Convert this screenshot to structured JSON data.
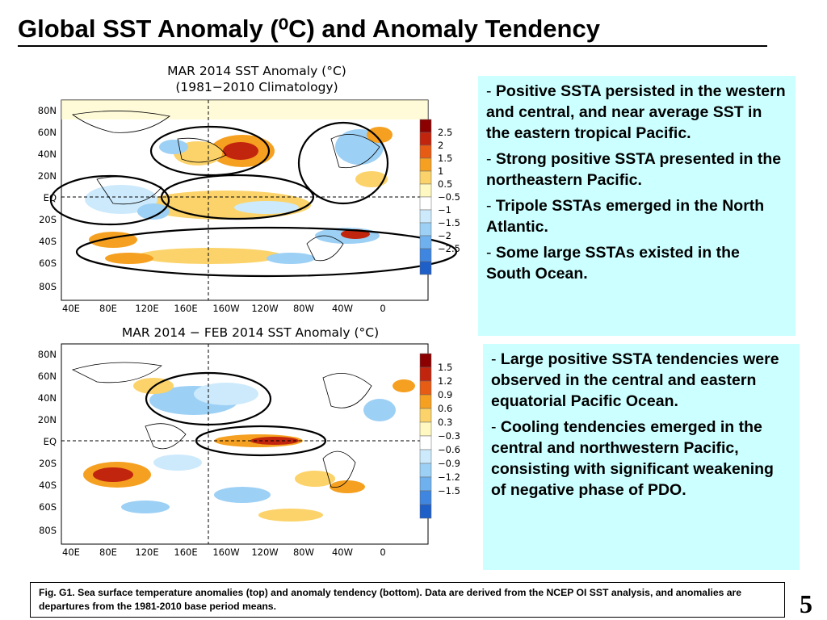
{
  "slide": {
    "title": "Global SST Anomaly (⁰C) and Anomaly Tendency",
    "page_number": "5",
    "caption": "Fig. G1. Sea surface temperature anomalies (top) and anomaly tendency (bottom). Data are derived from the NCEP OI SST analysis, and anomalies are departures from the 1981-2010 base period means."
  },
  "top_map": {
    "title_line1": "MAR 2014 SST Anomaly (°C)",
    "title_line2": "(1981−2010 Climatology)",
    "lat_labels": [
      "80N",
      "60N",
      "40N",
      "20N",
      "EQ",
      "20S",
      "40S",
      "60S",
      "80S"
    ],
    "lon_labels": [
      "40E",
      "80E",
      "120E",
      "160E",
      "160W",
      "120W",
      "80W",
      "40W",
      "0"
    ],
    "colorbar_labels": [
      "2.5",
      "2",
      "1.5",
      "1",
      "0.5",
      "−0.5",
      "−1",
      "−1.5",
      "−2",
      "−2.5"
    ],
    "colorbar_colors": [
      "#8b0000",
      "#c2250e",
      "#e65c14",
      "#f5a020",
      "#fcd36a",
      "#fff8c0",
      "#ffffff",
      "#cdeafc",
      "#9dd0f5",
      "#6fb1ee",
      "#3f86e0",
      "#1f5fc8"
    ]
  },
  "bottom_map": {
    "title": "MAR 2014 − FEB 2014 SST Anomaly (°C)",
    "lat_labels": [
      "80N",
      "60N",
      "40N",
      "20N",
      "EQ",
      "20S",
      "40S",
      "60S",
      "80S"
    ],
    "lon_labels": [
      "40E",
      "80E",
      "120E",
      "160E",
      "160W",
      "120W",
      "80W",
      "40W",
      "0"
    ],
    "colorbar_labels": [
      "1.5",
      "1.2",
      "0.9",
      "0.6",
      "0.3",
      "−0.3",
      "−0.6",
      "−0.9",
      "−1.2",
      "−1.5"
    ],
    "colorbar_colors": [
      "#8b0000",
      "#c2250e",
      "#e65c14",
      "#f5a020",
      "#fcd36a",
      "#fff8c0",
      "#ffffff",
      "#cdeafc",
      "#9dd0f5",
      "#6fb1ee",
      "#3f86e0",
      "#1f5fc8"
    ]
  },
  "top_notes": [
    {
      "dash": "-",
      "text": "Positive SSTA persisted in the western and central, and near average SST in the eastern tropical Pacific."
    },
    {
      "dash": "-",
      "text": "Strong positive SSTA presented in the northeastern Pacific."
    },
    {
      "dash": "-",
      "text": "Tripole SSTAs emerged in the North Atlantic."
    },
    {
      "dash": "-",
      "text": "Some large SSTAs existed in the South Ocean."
    }
  ],
  "bottom_notes": [
    {
      "dash": "-",
      "text": "Large positive SSTA tendencies were observed in the central and eastern equatorial Pacific Ocean."
    },
    {
      "dash": "-",
      "text": "Cooling tendencies emerged in the central and northwestern Pacific, consisting with significant weakening of negative phase of PDO."
    }
  ],
  "colors": {
    "note_background": "#ccffff",
    "map_warm": "#f5a020",
    "map_cool": "#9dd0f5"
  }
}
